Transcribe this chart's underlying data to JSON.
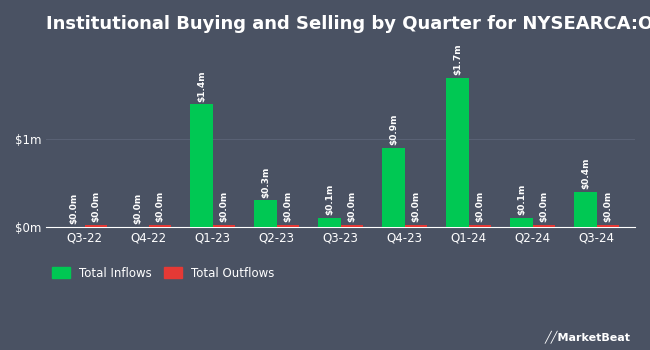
{
  "title": "Institutional Buying and Selling by Quarter for NYSEARCA:OACP",
  "quarters": [
    "Q3-22",
    "Q4-22",
    "Q1-23",
    "Q2-23",
    "Q3-23",
    "Q4-23",
    "Q1-24",
    "Q2-24",
    "Q3-24"
  ],
  "inflows": [
    0.0,
    0.0,
    1.4,
    0.3,
    0.1,
    0.9,
    1.7,
    0.1,
    0.4
  ],
  "outflows": [
    0.02,
    0.02,
    0.02,
    0.02,
    0.02,
    0.02,
    0.02,
    0.02,
    0.02
  ],
  "inflow_labels": [
    "$0.0m",
    "$0.0m",
    "$1.4m",
    "$0.3m",
    "$0.1m",
    "$0.9m",
    "$1.7m",
    "$0.1m",
    "$0.4m"
  ],
  "outflow_labels": [
    "$0.0m",
    "$0.0m",
    "$0.0m",
    "$0.0m",
    "$0.0m",
    "$0.0m",
    "$0.0m",
    "$0.0m",
    "$0.0m"
  ],
  "inflow_color": "#00c853",
  "outflow_color": "#e53935",
  "background_color": "#4a5263",
  "text_color": "#ffffff",
  "grid_color": "#5a6275",
  "yticks": [
    0,
    1
  ],
  "ytick_labels": [
    "$0m",
    "$1m"
  ],
  "ylim": [
    0,
    2.1
  ],
  "bar_width": 0.35,
  "title_fontsize": 13,
  "label_fontsize": 6.5,
  "tick_fontsize": 8.5,
  "legend_fontsize": 8.5
}
